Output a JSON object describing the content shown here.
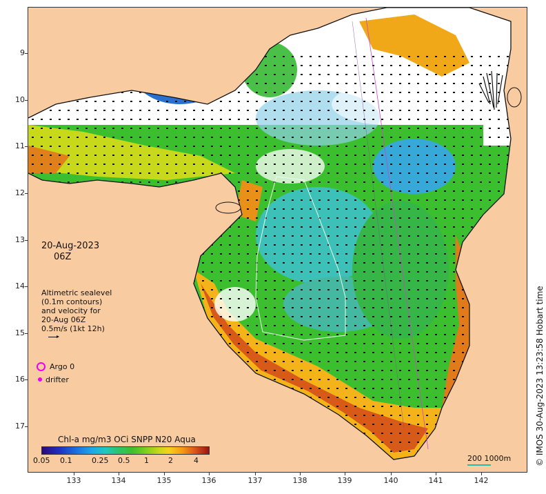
{
  "map": {
    "date": "20-Aug-2023",
    "time": "06Z",
    "legend_lines": [
      "Altimetric sealevel",
      "(0.1m contours)",
      "and velocity for",
      "20-Aug 06Z",
      "0.5m/s (1kt 12h)"
    ],
    "argo_label": "Argo 0",
    "drifter_label": "drifter",
    "colorbar_title": "Chl-a mg/m3 OCi SNPP N20 Aqua",
    "colorbar_ticks": [
      "0.05",
      "0.1",
      "0.25",
      "0.5",
      "1",
      "2",
      "4"
    ],
    "scale_label": "200  1000m",
    "credit": "© IMOS 30-Aug-2023 13:23:58 Hobart time",
    "lat_ticks": [
      "9",
      "10",
      "11",
      "12",
      "13",
      "14",
      "15",
      "16",
      "17"
    ],
    "lon_ticks": [
      "133",
      "134",
      "135",
      "136",
      "137",
      "138",
      "139",
      "140",
      "141",
      "142"
    ],
    "colors": {
      "land": "#f9cba0",
      "no_data": "#ffffff",
      "argo": "#ee00ee",
      "contour": "#e8ffe8",
      "scale": "#2fb8a8"
    }
  }
}
